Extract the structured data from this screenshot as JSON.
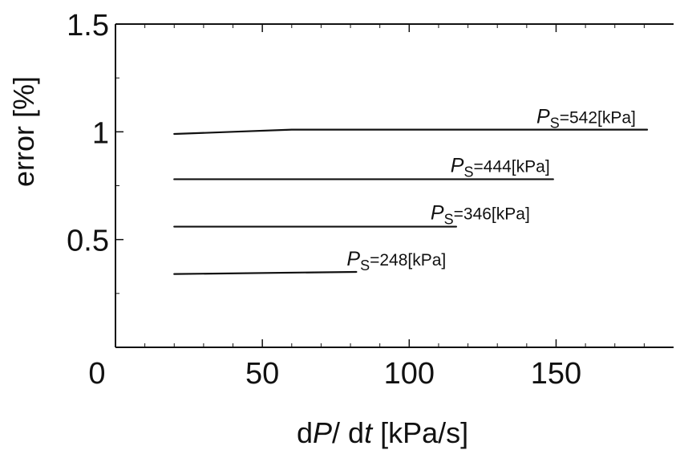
{
  "chart_data": {
    "type": "line",
    "title": "",
    "xlabel": "dP/ dt [kPa/s]",
    "ylabel": "error [%]",
    "xlim": [
      0,
      190
    ],
    "ylim": [
      0,
      1.5
    ],
    "x_ticks": [
      0,
      50,
      100,
      150
    ],
    "y_ticks": [
      0.5,
      1,
      1.5
    ],
    "y_tick_labels": [
      "0.5",
      "1",
      "1.5"
    ],
    "x_tick_labels": [
      "0",
      "50",
      "100",
      "150"
    ],
    "grid": false,
    "legend": "none",
    "series": [
      {
        "name": "PS=542[kPa]",
        "x": [
          20,
          40,
          60,
          80,
          100,
          120,
          140,
          160,
          181
        ],
        "y": [
          0.99,
          1.0,
          1.01,
          1.01,
          1.01,
          1.01,
          1.01,
          1.01,
          1.01
        ]
      },
      {
        "name": "PS=444[kPa]",
        "x": [
          20,
          149
        ],
        "y": [
          0.78,
          0.78
        ]
      },
      {
        "name": "PS=346[kPa]",
        "x": [
          20,
          116
        ],
        "y": [
          0.56,
          0.56
        ]
      },
      {
        "name": "PS=248[kPa]",
        "x": [
          20,
          82
        ],
        "y": [
          0.34,
          0.35
        ]
      }
    ],
    "series_labels": [
      {
        "symbol": "P",
        "subscript": "S",
        "suffix": "=542[kPa]"
      },
      {
        "symbol": "P",
        "subscript": "S",
        "suffix": "=444[kPa]"
      },
      {
        "symbol": "P",
        "subscript": "S",
        "suffix": "=346[kPa]"
      },
      {
        "symbol": "P",
        "subscript": "S",
        "suffix": "=248[kPa]"
      }
    ],
    "axis_label_parts": {
      "x": {
        "prefix": "d",
        "italic_1": "P",
        "mid": "/ d",
        "italic_2": "t",
        "suffix": " [kPa/s]"
      },
      "y": {
        "text": "error [%]"
      }
    },
    "colors": {
      "line": "#111111",
      "frame": "#111111",
      "background": "#ffffff"
    }
  }
}
